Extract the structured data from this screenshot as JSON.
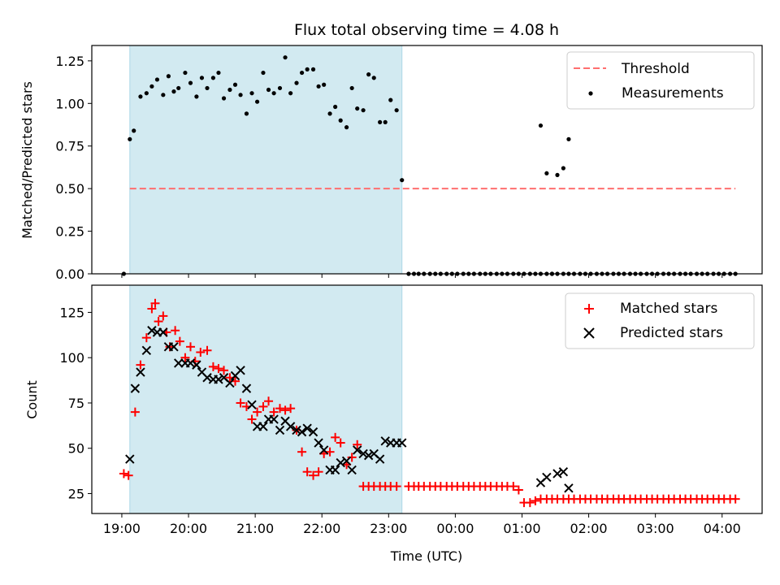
{
  "chart_data": [
    {
      "type": "scatter",
      "title": "Flux total observing time = 4.08 h",
      "xlabel": "",
      "ylabel": "Matched/Predicted stars",
      "ylim": [
        0,
        1.34
      ],
      "yticks": [
        "0.00",
        "0.25",
        "0.50",
        "0.75",
        "1.00",
        "1.25"
      ],
      "xlim": [
        -0.45,
        9.6
      ],
      "shaded_region": [
        0.12,
        4.2
      ],
      "legend_position": "top-right",
      "colors": {
        "shade": "#add8e6",
        "threshold": "#ff6f6f",
        "measurements": "#000000"
      },
      "series": [
        {
          "name": "Threshold",
          "kind": "dashed-line",
          "x": [
            0.12,
            9.2
          ],
          "values": [
            0.5,
            0.5
          ]
        },
        {
          "name": "Measurements",
          "kind": "dots",
          "x": [
            0.03,
            0.12,
            0.18,
            0.28,
            0.37,
            0.45,
            0.53,
            0.62,
            0.7,
            0.78,
            0.85,
            0.95,
            1.03,
            1.12,
            1.2,
            1.28,
            1.37,
            1.45,
            1.53,
            1.62,
            1.7,
            1.78,
            1.87,
            1.95,
            2.03,
            2.12,
            2.2,
            2.28,
            2.37,
            2.45,
            2.53,
            2.62,
            2.7,
            2.78,
            2.87,
            2.95,
            3.03,
            3.12,
            3.2,
            3.28,
            3.37,
            3.45,
            3.53,
            3.62,
            3.7,
            3.78,
            3.87,
            3.95,
            4.03,
            4.12,
            4.2,
            4.3,
            4.38,
            4.45,
            4.53,
            4.62,
            4.7,
            4.78,
            4.87,
            4.95,
            5.03,
            5.12,
            5.2,
            5.28,
            5.37,
            5.45,
            5.53,
            5.62,
            5.7,
            5.78,
            5.87,
            5.95,
            6.03,
            6.12,
            6.2,
            6.28,
            6.37,
            6.45,
            6.53,
            6.62,
            6.7,
            6.78,
            6.87,
            6.95,
            7.03,
            7.12,
            7.2,
            7.28,
            7.37,
            7.45,
            7.53,
            7.62,
            7.7,
            7.78,
            7.87,
            7.95,
            8.03,
            8.12,
            8.2,
            8.28,
            8.37,
            8.45,
            8.53,
            8.62,
            8.7,
            8.78,
            8.87,
            8.95,
            9.03,
            9.12,
            9.2
          ],
          "values": [
            0.0,
            0.79,
            0.84,
            1.04,
            1.06,
            1.1,
            1.14,
            1.05,
            1.16,
            1.07,
            1.09,
            1.18,
            1.12,
            1.04,
            1.15,
            1.09,
            1.15,
            1.18,
            1.03,
            1.08,
            1.11,
            1.05,
            0.94,
            1.06,
            1.01,
            1.18,
            1.08,
            1.06,
            1.09,
            1.27,
            1.06,
            1.12,
            1.18,
            1.2,
            1.2,
            1.1,
            1.11,
            0.94,
            0.98,
            0.9,
            0.86,
            1.09,
            0.97,
            0.96,
            1.17,
            1.15,
            0.89,
            0.89,
            1.02,
            0.96,
            0.55,
            0.0,
            0.0,
            0.0,
            0.0,
            0.0,
            0.0,
            0.0,
            0.0,
            0.0,
            0.0,
            0.0,
            0.0,
            0.0,
            0.0,
            0.0,
            0.0,
            0.0,
            0.0,
            0.0,
            0.0,
            0.0,
            0.0,
            0.0,
            0.0,
            0.0,
            0.0,
            0.0,
            0.0,
            0.0,
            0.0,
            0.0,
            0.0,
            0.0,
            0.0,
            0.0,
            0.0,
            0.0,
            0.0,
            0.0,
            0.0,
            0.0,
            0.0,
            0.0,
            0.0,
            0.0,
            0.0,
            0.0,
            0.0,
            0.0,
            0.0,
            0.0,
            0.0,
            0.0,
            0.0,
            0.0,
            0.0,
            0.0,
            0.0,
            0.0,
            0.0
          ],
          "extra_points": [
            {
              "x": 6.28,
              "y": 0.87
            },
            {
              "x": 6.37,
              "y": 0.59
            },
            {
              "x": 6.45,
              "y": 0.0
            },
            {
              "x": 6.53,
              "y": 0.58
            },
            {
              "x": 6.62,
              "y": 0.62
            },
            {
              "x": 6.7,
              "y": 0.79
            }
          ]
        }
      ]
    },
    {
      "type": "scatter",
      "title": "",
      "xlabel": "Time (UTC)",
      "ylabel": "Count",
      "ylim": [
        14,
        140
      ],
      "yticks": [
        "25",
        "50",
        "75",
        "100",
        "125"
      ],
      "xlim": [
        -0.45,
        9.6
      ],
      "xticks": [
        "19:00",
        "20:00",
        "21:00",
        "22:00",
        "23:00",
        "00:00",
        "01:00",
        "02:00",
        "03:00",
        "04:00"
      ],
      "shaded_region": [
        0.12,
        4.2
      ],
      "legend_position": "top-right",
      "colors": {
        "shade": "#add8e6",
        "matched": "#ff0000",
        "predicted": "#000000"
      },
      "series": [
        {
          "name": "Matched stars",
          "kind": "plus",
          "x": [
            0.03,
            0.1,
            0.2,
            0.28,
            0.37,
            0.45,
            0.5,
            0.55,
            0.62,
            0.67,
            0.72,
            0.8,
            0.87,
            0.95,
            1.03,
            1.1,
            1.18,
            1.28,
            1.37,
            1.45,
            1.53,
            1.62,
            1.7,
            1.78,
            1.87,
            1.95,
            2.03,
            2.12,
            2.2,
            2.28,
            2.37,
            2.45,
            2.53,
            2.62,
            2.7,
            2.78,
            2.87,
            2.95,
            3.03,
            3.12,
            3.2,
            3.28,
            3.37,
            3.45,
            3.53,
            3.62,
            3.7,
            3.78,
            3.87,
            3.95,
            4.03,
            4.12,
            4.3,
            4.38,
            4.45,
            4.53,
            4.62,
            4.7,
            4.78,
            4.87,
            4.95,
            5.03,
            5.12,
            5.2,
            5.28,
            5.37,
            5.45,
            5.53,
            5.62,
            5.7,
            5.78,
            5.87,
            5.95,
            6.03,
            6.12,
            6.2,
            6.28,
            6.37,
            6.45,
            6.53,
            6.62,
            6.7,
            6.78,
            6.87,
            6.95,
            7.03,
            7.12,
            7.2,
            7.28,
            7.37,
            7.45,
            7.53,
            7.62,
            7.7,
            7.78,
            7.87,
            7.95,
            8.03,
            8.12,
            8.2,
            8.28,
            8.37,
            8.45,
            8.53,
            8.62,
            8.7,
            8.78,
            8.87,
            8.95,
            9.03,
            9.12,
            9.2
          ],
          "values": [
            36,
            35,
            70,
            96,
            111,
            127,
            130,
            120,
            123,
            114,
            106,
            115,
            109,
            100,
            106,
            98,
            103,
            104,
            95,
            94,
            93,
            89,
            87,
            75,
            73,
            66,
            70,
            73,
            76,
            70,
            72,
            71,
            72,
            60,
            48,
            37,
            35,
            37,
            47,
            48,
            56,
            53,
            41,
            45,
            52,
            29,
            29,
            29,
            29,
            29,
            29,
            29,
            29,
            29,
            29,
            29,
            29,
            29,
            29,
            29,
            29,
            29,
            29,
            29,
            29,
            29,
            29,
            29,
            29,
            29,
            29,
            29,
            27,
            20,
            20,
            21,
            22,
            22,
            22,
            22,
            22,
            22,
            22,
            22,
            22,
            22,
            22,
            22,
            22,
            22,
            22,
            22,
            22,
            22,
            22,
            22,
            22,
            22,
            22,
            22,
            22,
            22,
            22,
            22,
            22,
            22,
            22,
            22,
            22,
            22,
            22,
            22
          ]
        },
        {
          "name": "Predicted stars",
          "kind": "cross",
          "x": [
            0.12,
            0.2,
            0.28,
            0.37,
            0.45,
            0.53,
            0.62,
            0.7,
            0.78,
            0.85,
            0.95,
            1.03,
            1.12,
            1.2,
            1.28,
            1.37,
            1.45,
            1.53,
            1.62,
            1.7,
            1.78,
            1.87,
            1.95,
            2.03,
            2.12,
            2.2,
            2.28,
            2.37,
            2.45,
            2.53,
            2.62,
            2.7,
            2.78,
            2.87,
            2.95,
            3.03,
            3.12,
            3.2,
            3.28,
            3.37,
            3.45,
            3.53,
            3.62,
            3.7,
            3.78,
            3.87,
            3.95,
            4.03,
            4.12,
            4.2,
            6.28,
            6.37,
            6.53,
            6.62,
            6.7
          ],
          "values": [
            44,
            83,
            92,
            104,
            115,
            114,
            114,
            106,
            106,
            97,
            97,
            97,
            96,
            92,
            89,
            88,
            88,
            89,
            86,
            90,
            93,
            83,
            74,
            62,
            62,
            66,
            66,
            60,
            65,
            62,
            60,
            59,
            61,
            59,
            53,
            49,
            38,
            38,
            42,
            43,
            38,
            49,
            47,
            46,
            47,
            44,
            54,
            53,
            53,
            53,
            31,
            34,
            36,
            37,
            28
          ]
        }
      ]
    }
  ]
}
